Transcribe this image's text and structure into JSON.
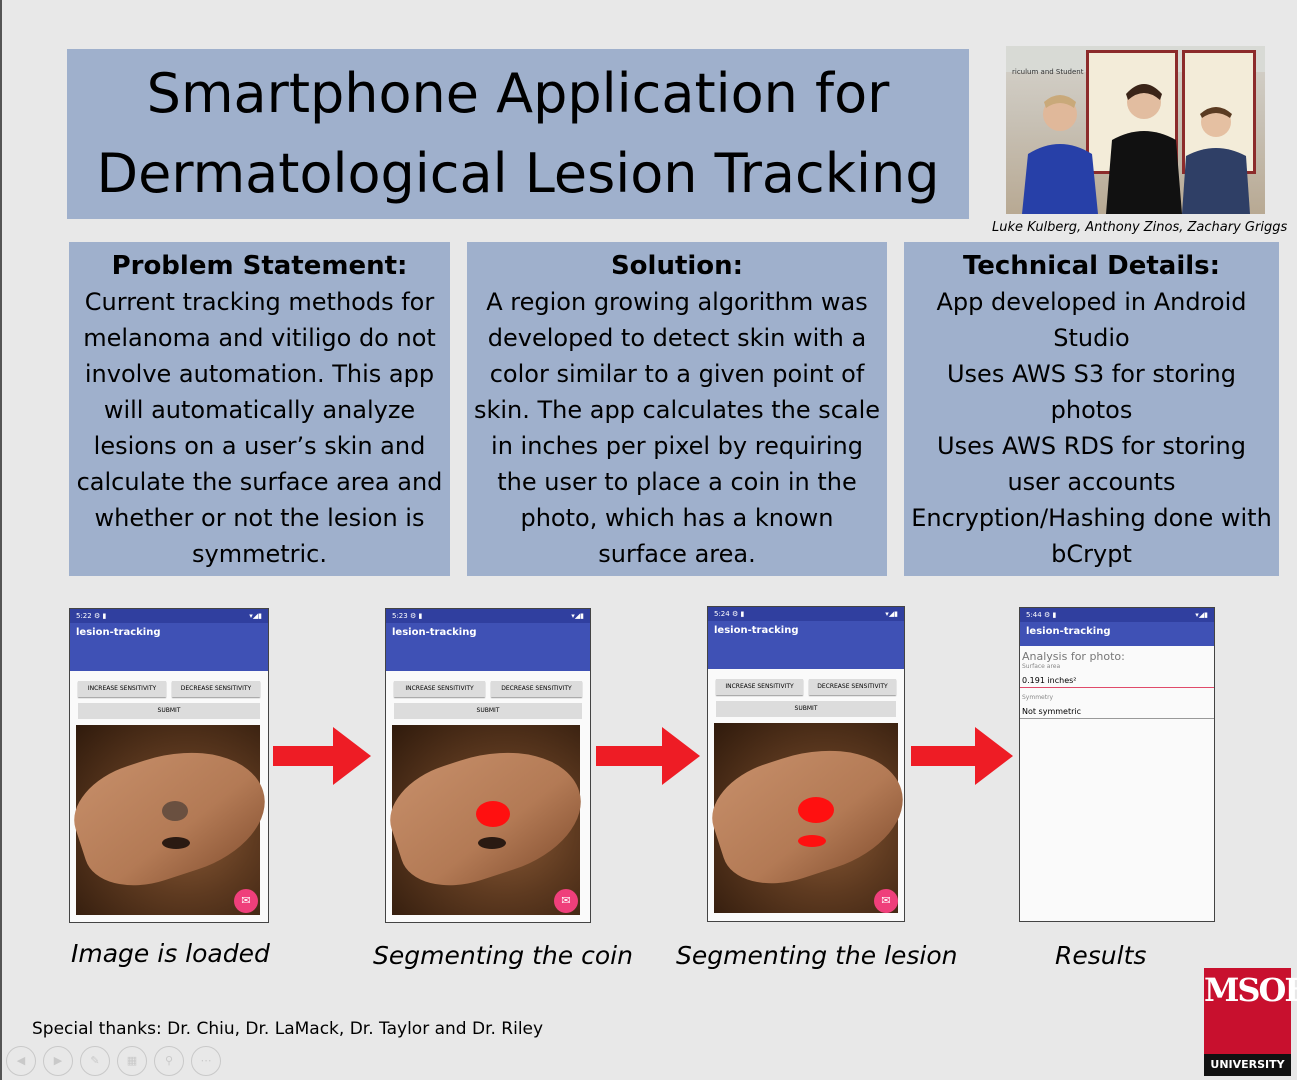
{
  "title": {
    "line1": "Smartphone Application for",
    "line2": "Dermatological Lesion Tracking"
  },
  "photo": {
    "sign": "riculum and Student Opportunities",
    "caption": "Luke Kulberg, Anthony Zinos, Zachary Griggs"
  },
  "panels": [
    {
      "heading": "Problem Statement:",
      "body": "Current tracking methods for melanoma and vitiligo do not involve automation. This app will automatically analyze lesions on a user’s skin and calculate the surface area and whether or not the lesion is symmetric."
    },
    {
      "heading": "Solution:",
      "body": "A region growing algorithm was developed to detect skin with a color similar to a given point of skin.  The app calculates the scale in inches per pixel by requiring the user to place a coin in the photo, which has a known surface area."
    },
    {
      "heading": "Technical Details:",
      "lines": [
        "App developed in Android Studio",
        "Uses AWS S3 for storing photos",
        "Uses AWS RDS for storing user accounts",
        "Encryption/Hashing done with bCrypt"
      ]
    }
  ],
  "phones": [
    {
      "time": "5:22",
      "app_title": "lesion-tracking",
      "inc": "INCREASE SENSITIVITY",
      "dec": "DECREASE SENSITIVITY",
      "submit": "SUBMIT",
      "caption": "Image is loaded"
    },
    {
      "time": "5:23",
      "app_title": "lesion-tracking",
      "inc": "INCREASE SENSITIVITY",
      "dec": "DECREASE SENSITIVITY",
      "submit": "SUBMIT",
      "caption": "Segmenting the coin"
    },
    {
      "time": "5:24",
      "app_title": "lesion-tracking",
      "inc": "INCREASE SENSITIVITY",
      "dec": "DECREASE SENSITIVITY",
      "submit": "SUBMIT",
      "caption": "Segmenting the lesion"
    },
    {
      "time": "5:44",
      "app_title": "lesion-tracking",
      "caption": "Results",
      "analysis_label": "Analysis for photo:",
      "surface_label": "Surface area",
      "surface_value": "0.191 inches²",
      "symmetry_label": "Symmetry",
      "symmetry_value": "Not symmetric"
    }
  ],
  "thanks": "Special thanks: Dr. Chiu, Dr. LaMack, Dr. Taylor and Dr. Riley",
  "logo": {
    "letters": "MSOE",
    "university": "UNIVERSITY"
  },
  "colors": {
    "panel": "#9fb0cc",
    "arrow": "#ee1c25",
    "appbar": "#3f51b5",
    "logo": "#c8102e"
  },
  "nav_icons": [
    "prev-icon",
    "next-icon",
    "pen-icon",
    "slides-icon",
    "zoom-icon",
    "more-icon"
  ]
}
